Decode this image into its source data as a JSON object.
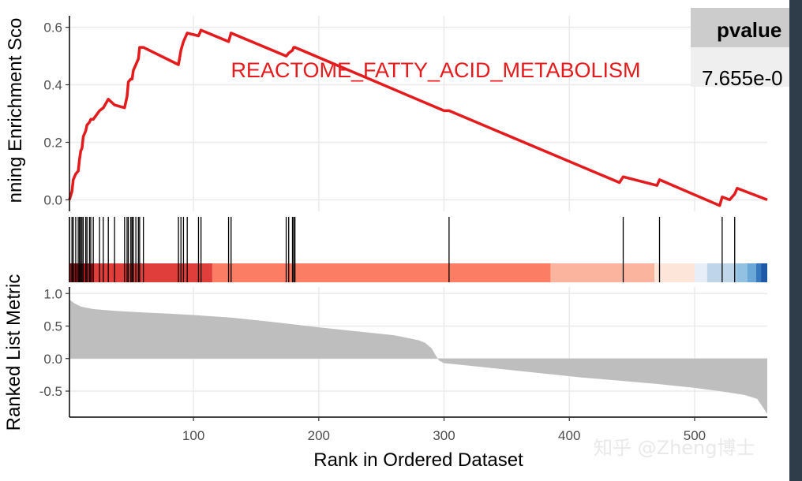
{
  "chart_data": {
    "type": "line",
    "gene_set": "REACTOME_FATTY_ACID_METABOLISM",
    "table": {
      "header": "pvalue",
      "value": "7.655e-0"
    },
    "xlabel": "Rank in Ordered Dataset",
    "xlim": [
      1,
      558
    ],
    "x_ticks": [
      100,
      200,
      300,
      400,
      500
    ],
    "x_tick_labels": [
      "100",
      "200",
      "300",
      "400",
      "500"
    ],
    "panels": {
      "running_score": {
        "ylabel": "nning Enrichment Sco",
        "ylim": [
          -0.04,
          0.64
        ],
        "y_ticks": [
          0.0,
          0.2,
          0.4,
          0.6
        ],
        "y_tick_labels": [
          "0.0",
          "0.2",
          "0.4",
          "0.6"
        ],
        "line_color": "#e41a1c",
        "x": [
          1,
          3,
          4,
          6,
          8,
          9,
          10,
          11,
          12,
          14,
          15,
          17,
          18,
          20,
          25,
          28,
          32,
          37,
          45,
          47,
          48,
          50,
          51,
          52,
          54,
          56,
          57,
          60,
          88,
          90,
          92,
          95,
          104,
          106,
          128,
          130,
          174,
          176,
          179,
          180,
          181,
          300,
          304,
          440,
          443,
          470,
          472,
          520,
          522,
          528,
          532,
          534,
          558
        ],
        "y": [
          0.0,
          0.03,
          0.07,
          0.09,
          0.1,
          0.14,
          0.17,
          0.18,
          0.22,
          0.24,
          0.26,
          0.27,
          0.28,
          0.28,
          0.31,
          0.32,
          0.35,
          0.33,
          0.32,
          0.36,
          0.41,
          0.42,
          0.42,
          0.45,
          0.47,
          0.49,
          0.53,
          0.53,
          0.47,
          0.52,
          0.55,
          0.58,
          0.57,
          0.59,
          0.55,
          0.58,
          0.5,
          0.51,
          0.52,
          0.53,
          0.53,
          0.31,
          0.31,
          0.06,
          0.08,
          0.05,
          0.07,
          -0.02,
          0.01,
          0.0,
          0.02,
          0.04,
          0.0
        ]
      },
      "hits": {
        "x": [
          1,
          3,
          4,
          6,
          8,
          9,
          10,
          11,
          12,
          14,
          15,
          17,
          18,
          20,
          25,
          28,
          32,
          37,
          45,
          47,
          48,
          50,
          51,
          52,
          54,
          56,
          57,
          60,
          88,
          90,
          92,
          95,
          104,
          106,
          128,
          130,
          174,
          176,
          179,
          180,
          181,
          304,
          443,
          472,
          522,
          532
        ],
        "color_bands": [
          {
            "from": 1,
            "to": 10,
            "color": "#8b1518"
          },
          {
            "from": 10,
            "to": 20,
            "color": "#b8181d"
          },
          {
            "from": 20,
            "to": 115,
            "color": "#e03e3a"
          },
          {
            "from": 115,
            "to": 385,
            "color": "#fb7d63"
          },
          {
            "from": 385,
            "to": 468,
            "color": "#fbb59e"
          },
          {
            "from": 468,
            "to": 500,
            "color": "#fee5da"
          },
          {
            "from": 500,
            "to": 510,
            "color": "#e8eef8"
          },
          {
            "from": 510,
            "to": 533,
            "color": "#bed5ea"
          },
          {
            "from": 533,
            "to": 542,
            "color": "#92c1e1"
          },
          {
            "from": 542,
            "to": 549,
            "color": "#6ba8d8"
          },
          {
            "from": 549,
            "to": 553,
            "color": "#3478bd"
          },
          {
            "from": 553,
            "to": 558,
            "color": "#1e59a8"
          }
        ]
      },
      "ranked_metric": {
        "ylabel": "Ranked List Metric",
        "ylim": [
          -0.9,
          1.1
        ],
        "y_ticks": [
          -0.5,
          0.0,
          0.5,
          1.0
        ],
        "y_tick_labels": [
          "-0.5",
          "0.0",
          "0.5",
          "1.0"
        ],
        "fill_color": "#bebebe",
        "x": [
          1,
          2,
          5,
          10,
          20,
          40,
          60,
          80,
          100,
          130,
          160,
          200,
          230,
          260,
          280,
          285,
          290,
          293,
          296,
          300,
          320,
          350,
          380,
          410,
          440,
          470,
          500,
          520,
          540,
          550,
          558
        ],
        "y": [
          0.91,
          0.89,
          0.85,
          0.8,
          0.76,
          0.73,
          0.71,
          0.69,
          0.67,
          0.63,
          0.57,
          0.48,
          0.42,
          0.36,
          0.28,
          0.24,
          0.16,
          0.06,
          -0.03,
          -0.07,
          -0.11,
          -0.17,
          -0.23,
          -0.29,
          -0.34,
          -0.39,
          -0.45,
          -0.5,
          -0.56,
          -0.62,
          -0.85
        ]
      }
    }
  },
  "watermark": "知乎 @Zheng博士"
}
